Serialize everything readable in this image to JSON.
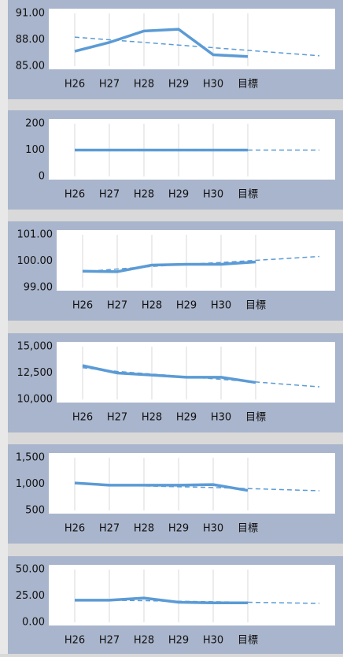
{
  "chart_data": [
    {
      "type": "line",
      "categories": [
        "H26",
        "H27",
        "H28",
        "H29",
        "H30",
        "目標"
      ],
      "series": [
        {
          "color": "#5b9bd5",
          "values": [
            86.7,
            87.7,
            89.0,
            89.2,
            86.3,
            86.1
          ]
        },
        {
          "color": "#5b9bd5",
          "dashed": true,
          "values": [
            88.3,
            88.0,
            87.7,
            87.4,
            87.1,
            86.8
          ]
        }
      ],
      "ylim": [
        85,
        91
      ],
      "yticks": [
        {
          "value": 85,
          "label": "85.00"
        },
        {
          "value": 88,
          "label": "88.00"
        },
        {
          "value": 91,
          "label": "91.00"
        }
      ]
    },
    {
      "type": "line",
      "categories": [
        "H26",
        "H27",
        "H28",
        "H29",
        "H30",
        "目標"
      ],
      "series": [
        {
          "color": "#5b9bd5",
          "values": [
            100,
            100,
            100,
            100,
            100,
            100
          ]
        },
        {
          "color": "#5b9bd5",
          "dashed": true,
          "values": [
            100,
            100,
            100,
            100,
            100,
            100
          ]
        }
      ],
      "ylim": [
        0,
        200
      ],
      "yticks": [
        0,
        100,
        200
      ]
    },
    {
      "type": "line",
      "categories": [
        "H26",
        "H27",
        "H28",
        "H29",
        "H30",
        "目標"
      ],
      "series": [
        {
          "color": "#5b9bd5",
          "values": [
            99.62,
            99.6,
            99.85,
            99.88,
            99.88,
            99.97
          ]
        },
        {
          "color": "#5b9bd5",
          "dashed": true,
          "values": [
            99.6,
            99.7,
            99.8,
            99.88,
            99.95,
            100.03
          ]
        }
      ],
      "ylim": [
        99,
        101
      ],
      "yticks": [
        {
          "value": 99,
          "label": "99.00"
        },
        {
          "value": 100,
          "label": "100.00"
        },
        {
          "value": 101,
          "label": "101.00"
        }
      ]
    },
    {
      "type": "line",
      "categories": [
        "H26",
        "H27",
        "H28",
        "H29",
        "H30",
        "目標"
      ],
      "series": [
        {
          "color": "#5b9bd5",
          "values": [
            13200,
            12500,
            12300,
            12100,
            12100,
            11600
          ]
        },
        {
          "color": "#5b9bd5",
          "dashed": true,
          "values": [
            13000,
            12650,
            12400,
            12150,
            11900,
            11650
          ]
        }
      ],
      "ylim": [
        10000,
        15000
      ],
      "yticks": [
        {
          "value": 10000,
          "label": "10,000"
        },
        {
          "value": 12500,
          "label": "12,500"
        },
        {
          "value": 15000,
          "label": "15,000"
        }
      ]
    },
    {
      "type": "line",
      "categories": [
        "H26",
        "H27",
        "H28",
        "H29",
        "H30",
        "目標"
      ],
      "series": [
        {
          "color": "#5b9bd5",
          "values": [
            1020,
            980,
            980,
            980,
            990,
            880
          ]
        },
        {
          "color": "#5b9bd5",
          "dashed": true,
          "values": [
            1010,
            985,
            965,
            950,
            935,
            915
          ]
        }
      ],
      "ylim": [
        500,
        1500
      ],
      "yticks": [
        500,
        {
          "value": 1000,
          "label": "1,000"
        },
        {
          "value": 1500,
          "label": "1,500"
        }
      ]
    },
    {
      "type": "line",
      "categories": [
        "H26",
        "H27",
        "H28",
        "H29",
        "H30",
        "目標"
      ],
      "series": [
        {
          "color": "#5b9bd5",
          "values": [
            21,
            21,
            23,
            19,
            18.5,
            18.5
          ]
        },
        {
          "color": "#5b9bd5",
          "dashed": true,
          "values": [
            21.5,
            21,
            20.5,
            20,
            19.5,
            19
          ]
        }
      ],
      "ylim": [
        0,
        50
      ],
      "yticks": [
        {
          "value": 0,
          "label": "0.00"
        },
        {
          "value": 25,
          "label": "25.00"
        },
        {
          "value": 50,
          "label": "50.00"
        }
      ]
    }
  ]
}
